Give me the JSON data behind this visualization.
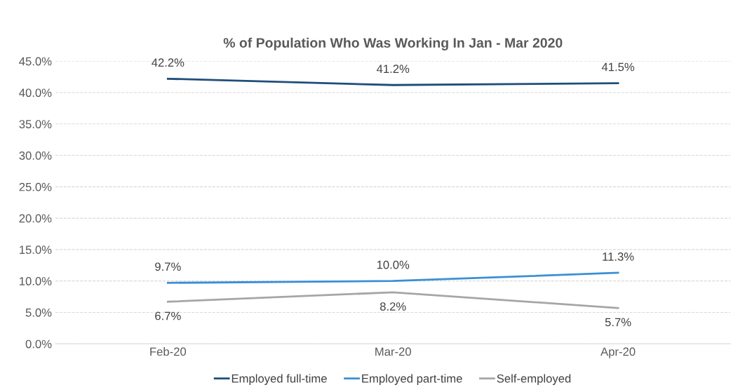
{
  "chart_data": {
    "type": "line",
    "title": "% of Population Who Was Working In Jan - Mar 2020",
    "categories": [
      "Feb-20",
      "Mar-20",
      "Apr-20"
    ],
    "series": [
      {
        "name": "Employed full-time",
        "color": "#1f4e79",
        "values": [
          42.2,
          41.2,
          41.5
        ],
        "value_labels": [
          "42.2%",
          "41.2%",
          "41.5%"
        ]
      },
      {
        "name": "Employed part-time",
        "color": "#3a8fd8",
        "values": [
          9.7,
          10.0,
          11.3
        ],
        "value_labels": [
          "9.7%",
          "10.0%",
          "11.3%"
        ]
      },
      {
        "name": "Self-employed",
        "color": "#a6a6a6",
        "values": [
          6.7,
          8.2,
          5.7
        ],
        "value_labels": [
          "6.7%",
          "8.2%",
          "5.7%"
        ]
      }
    ],
    "ylim": [
      0,
      45
    ],
    "yticks": [
      {
        "value": 0,
        "label": "0.0%"
      },
      {
        "value": 5,
        "label": "5.0%"
      },
      {
        "value": 10,
        "label": "10.0%"
      },
      {
        "value": 15,
        "label": "15.0%"
      },
      {
        "value": 20,
        "label": "20.0%"
      },
      {
        "value": 25,
        "label": "25.0%"
      },
      {
        "value": 30,
        "label": "30.0%"
      },
      {
        "value": 35,
        "label": "35.0%"
      },
      {
        "value": 40,
        "label": "40.0%"
      },
      {
        "value": 45,
        "label": "45.0%"
      }
    ],
    "grid": "y",
    "legend": "bottom",
    "marker": "none",
    "line_style": "solid"
  }
}
